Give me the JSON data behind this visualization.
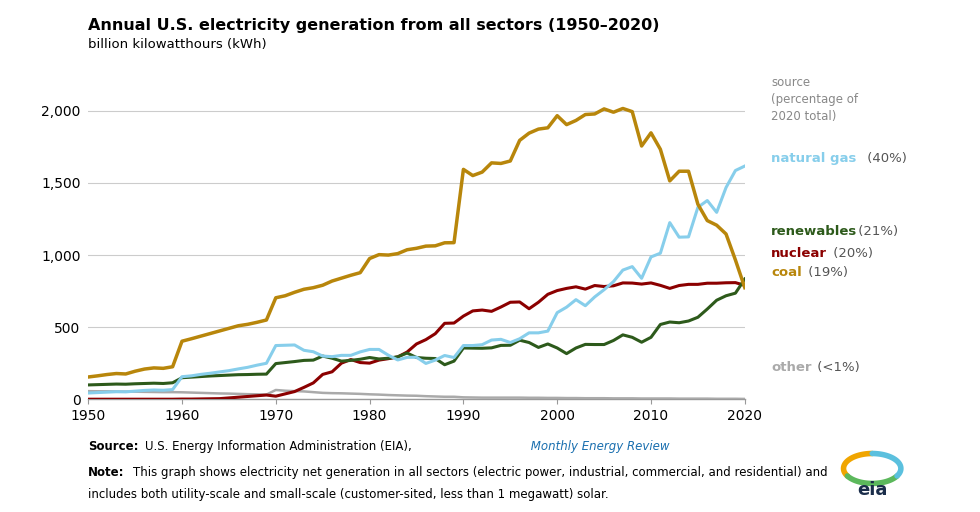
{
  "title": "Annual U.S. electricity generation from all sectors (1950–2020)",
  "subtitle": "billion kilowatthours (kWh)",
  "background_color": "#ffffff",
  "years": [
    1950,
    1951,
    1952,
    1953,
    1954,
    1955,
    1956,
    1957,
    1958,
    1959,
    1960,
    1961,
    1962,
    1963,
    1964,
    1965,
    1966,
    1967,
    1968,
    1969,
    1970,
    1971,
    1972,
    1973,
    1974,
    1975,
    1976,
    1977,
    1978,
    1979,
    1980,
    1981,
    1982,
    1983,
    1984,
    1985,
    1986,
    1987,
    1988,
    1989,
    1990,
    1991,
    1992,
    1993,
    1994,
    1995,
    1996,
    1997,
    1998,
    1999,
    2000,
    2001,
    2002,
    2003,
    2004,
    2005,
    2006,
    2007,
    2008,
    2009,
    2010,
    2011,
    2012,
    2013,
    2014,
    2015,
    2016,
    2017,
    2018,
    2019,
    2020
  ],
  "coal": [
    155,
    163,
    172,
    179,
    176,
    195,
    210,
    218,
    215,
    226,
    403,
    420,
    438,
    456,
    474,
    492,
    510,
    520,
    534,
    550,
    704,
    718,
    742,
    763,
    774,
    791,
    820,
    840,
    860,
    878,
    976,
    1003,
    1000,
    1010,
    1037,
    1047,
    1062,
    1064,
    1085,
    1086,
    1594,
    1551,
    1575,
    1639,
    1635,
    1652,
    1795,
    1845,
    1873,
    1882,
    1966,
    1904,
    1933,
    1974,
    1978,
    2013,
    1990,
    2016,
    1994,
    1756,
    1847,
    1733,
    1514,
    1581,
    1581,
    1352,
    1239,
    1207,
    1146,
    966,
    774
  ],
  "natural_gas": [
    44,
    47,
    50,
    53,
    52,
    57,
    62,
    65,
    63,
    68,
    157,
    163,
    173,
    181,
    190,
    199,
    211,
    222,
    237,
    250,
    373,
    375,
    377,
    340,
    330,
    300,
    296,
    305,
    305,
    329,
    346,
    346,
    306,
    273,
    291,
    292,
    249,
    272,
    304,
    290,
    373,
    373,
    379,
    411,
    416,
    394,
    420,
    461,
    461,
    473,
    601,
    639,
    691,
    649,
    710,
    760,
    816,
    896,
    920,
    839,
    987,
    1013,
    1225,
    1124,
    1126,
    1331,
    1378,
    1296,
    1468,
    1586,
    1617
  ],
  "nuclear": [
    1,
    1,
    1,
    1,
    1,
    1,
    1,
    1,
    1,
    1,
    2,
    2,
    3,
    4,
    5,
    10,
    15,
    20,
    25,
    30,
    22,
    38,
    54,
    83,
    114,
    173,
    191,
    251,
    276,
    255,
    251,
    272,
    282,
    294,
    328,
    384,
    414,
    455,
    527,
    529,
    577,
    613,
    619,
    610,
    640,
    673,
    675,
    628,
    673,
    728,
    754,
    769,
    780,
    764,
    789,
    782,
    787,
    807,
    806,
    799,
    807,
    790,
    769,
    789,
    797,
    797,
    805,
    805,
    808,
    809,
    790
  ],
  "renewables": [
    100,
    102,
    104,
    106,
    105,
    108,
    110,
    112,
    110,
    115,
    150,
    154,
    158,
    162,
    165,
    168,
    171,
    172,
    174,
    175,
    248,
    255,
    262,
    270,
    272,
    300,
    285,
    265,
    270,
    278,
    290,
    280,
    285,
    295,
    321,
    290,
    285,
    283,
    240,
    265,
    356,
    355,
    354,
    357,
    374,
    375,
    410,
    394,
    360,
    384,
    356,
    317,
    356,
    381,
    380,
    380,
    408,
    447,
    430,
    396,
    430,
    519,
    536,
    531,
    543,
    569,
    626,
    687,
    718,
    736,
    834
  ],
  "other": [
    57,
    56,
    56,
    55,
    54,
    53,
    52,
    51,
    50,
    50,
    49,
    47,
    45,
    43,
    41,
    40,
    38,
    36,
    35,
    33,
    65,
    60,
    57,
    55,
    50,
    45,
    43,
    42,
    40,
    38,
    35,
    33,
    30,
    28,
    26,
    25,
    22,
    20,
    18,
    18,
    14,
    13,
    12,
    12,
    12,
    12,
    12,
    11,
    11,
    10,
    10,
    9,
    9,
    8,
    8,
    8,
    7,
    7,
    7,
    6,
    6,
    6,
    6,
    5,
    5,
    5,
    5,
    4,
    4,
    4,
    3
  ],
  "coal_color": "#B8860B",
  "natural_gas_color": "#87CEEB",
  "nuclear_color": "#8B0000",
  "renewables_color": "#2d5a1b",
  "other_color": "#aaaaaa",
  "ylim": [
    0,
    2200
  ],
  "yticks": [
    0,
    500,
    1000,
    1500,
    2000
  ],
  "xlim": [
    1950,
    2020
  ],
  "source_italic": "Monthly Energy Review",
  "source_link_color": "#1a6faf"
}
